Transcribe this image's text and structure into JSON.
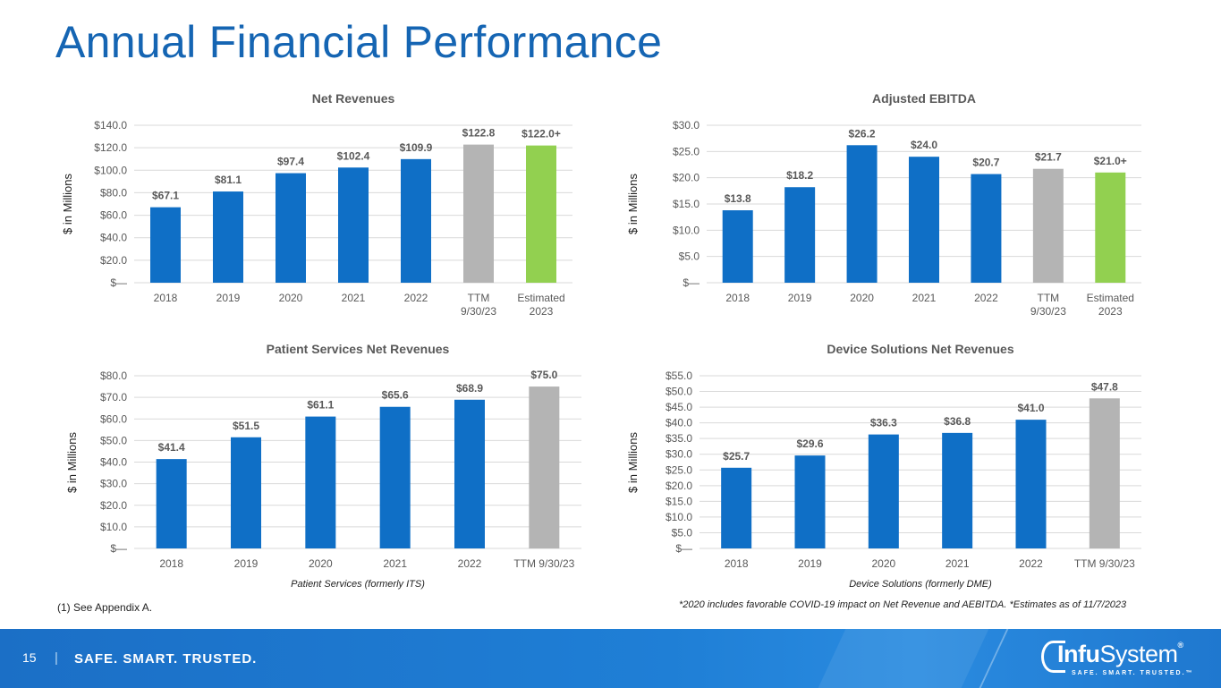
{
  "page": {
    "title": "Annual Financial Performance",
    "footnote_left": "(1) See Appendix A.",
    "footnote_right": "*2020 includes favorable COVID-19 impact on Net Revenue and AEBITDA.  *Estimates as of 11/7/2023",
    "page_number": "15",
    "separator": "|",
    "tagline": "SAFE. SMART. TRUSTED.",
    "logo": {
      "name_bold": "Infu",
      "name_regular": "System",
      "trademark": "®",
      "tagline": "SAFE. SMART. TRUSTED.™"
    }
  },
  "colors": {
    "title": "#1565b3",
    "bar_actual": "#0f6fc6",
    "bar_ttm": "#b4b4b4",
    "bar_estimate": "#92d050",
    "footer": "#1f7fd6"
  },
  "chart_data": [
    {
      "type": "bar",
      "title": "Net Revenues",
      "ylabel": "$ in Millions",
      "xlabel": "",
      "categories": [
        "2018",
        "2019",
        "2020",
        "2021",
        "2022",
        "TTM\n9/30/23",
        "Estimated\n2023"
      ],
      "values": [
        67.1,
        81.1,
        97.4,
        102.4,
        109.9,
        122.8,
        122.0
      ],
      "data_labels": [
        "$67.1",
        "$81.1",
        "$97.4",
        "$102.4",
        "$109.9",
        "$122.8",
        "$122.0+"
      ],
      "bar_colors": [
        "#0f6fc6",
        "#0f6fc6",
        "#0f6fc6",
        "#0f6fc6",
        "#0f6fc6",
        "#b4b4b4",
        "#92d050"
      ],
      "ylim": [
        0,
        140
      ],
      "yticks": [
        0,
        20,
        40,
        60,
        80,
        100,
        120,
        140
      ],
      "ytick_labels": [
        "$—",
        "$20.0",
        "$40.0",
        "$60.0",
        "$80.0",
        "$100.0",
        "$120.0",
        "$140.0"
      ],
      "grid": true
    },
    {
      "type": "bar",
      "title": "Adjusted EBITDA",
      "ylabel": "$ in Millions",
      "xlabel": "",
      "categories": [
        "2018",
        "2019",
        "2020",
        "2021",
        "2022",
        "TTM\n9/30/23",
        "Estimated\n2023"
      ],
      "values": [
        13.8,
        18.2,
        26.2,
        24.0,
        20.7,
        21.7,
        21.0
      ],
      "data_labels": [
        "$13.8",
        "$18.2",
        "$26.2",
        "$24.0",
        "$20.7",
        "$21.7",
        "$21.0+"
      ],
      "bar_colors": [
        "#0f6fc6",
        "#0f6fc6",
        "#0f6fc6",
        "#0f6fc6",
        "#0f6fc6",
        "#b4b4b4",
        "#92d050"
      ],
      "ylim": [
        0,
        30
      ],
      "yticks": [
        0,
        5,
        10,
        15,
        20,
        25,
        30
      ],
      "ytick_labels": [
        "$—",
        "$5.0",
        "$10.0",
        "$15.0",
        "$20.0",
        "$25.0",
        "$30.0"
      ],
      "grid": true
    },
    {
      "type": "bar",
      "title": "Patient Services Net Revenues",
      "ylabel": "$ in Millions",
      "xlabel": "Patient Services (formerly ITS)",
      "categories": [
        "2018",
        "2019",
        "2020",
        "2021",
        "2022",
        "TTM 9/30/23"
      ],
      "values": [
        41.4,
        51.5,
        61.1,
        65.6,
        68.9,
        75.0
      ],
      "data_labels": [
        "$41.4",
        "$51.5",
        "$61.1",
        "$65.6",
        "$68.9",
        "$75.0"
      ],
      "bar_colors": [
        "#0f6fc6",
        "#0f6fc6",
        "#0f6fc6",
        "#0f6fc6",
        "#0f6fc6",
        "#b4b4b4"
      ],
      "ylim": [
        0,
        80
      ],
      "yticks": [
        0,
        10,
        20,
        30,
        40,
        50,
        60,
        70,
        80
      ],
      "ytick_labels": [
        "$—",
        "$10.0",
        "$20.0",
        "$30.0",
        "$40.0",
        "$50.0",
        "$60.0",
        "$70.0",
        "$80.0"
      ],
      "grid": true
    },
    {
      "type": "bar",
      "title": "Device Solutions Net Revenues",
      "ylabel": "$ in Millions",
      "xlabel": "Device Solutions (formerly DME)",
      "categories": [
        "2018",
        "2019",
        "2020",
        "2021",
        "2022",
        "TTM 9/30/23"
      ],
      "values": [
        25.7,
        29.6,
        36.3,
        36.8,
        41.0,
        47.8
      ],
      "data_labels": [
        "$25.7",
        "$29.6",
        "$36.3",
        "$36.8",
        "$41.0",
        "$47.8"
      ],
      "bar_colors": [
        "#0f6fc6",
        "#0f6fc6",
        "#0f6fc6",
        "#0f6fc6",
        "#0f6fc6",
        "#b4b4b4"
      ],
      "ylim": [
        0,
        55
      ],
      "yticks": [
        0,
        5,
        10,
        15,
        20,
        25,
        30,
        35,
        40,
        45,
        50,
        55
      ],
      "ytick_labels": [
        "$—",
        "$5.0",
        "$10.0",
        "$15.0",
        "$20.0",
        "$25.0",
        "$30.0",
        "$35.0",
        "$40.0",
        "$45.0",
        "$50.0",
        "$55.0"
      ],
      "grid": true
    }
  ]
}
